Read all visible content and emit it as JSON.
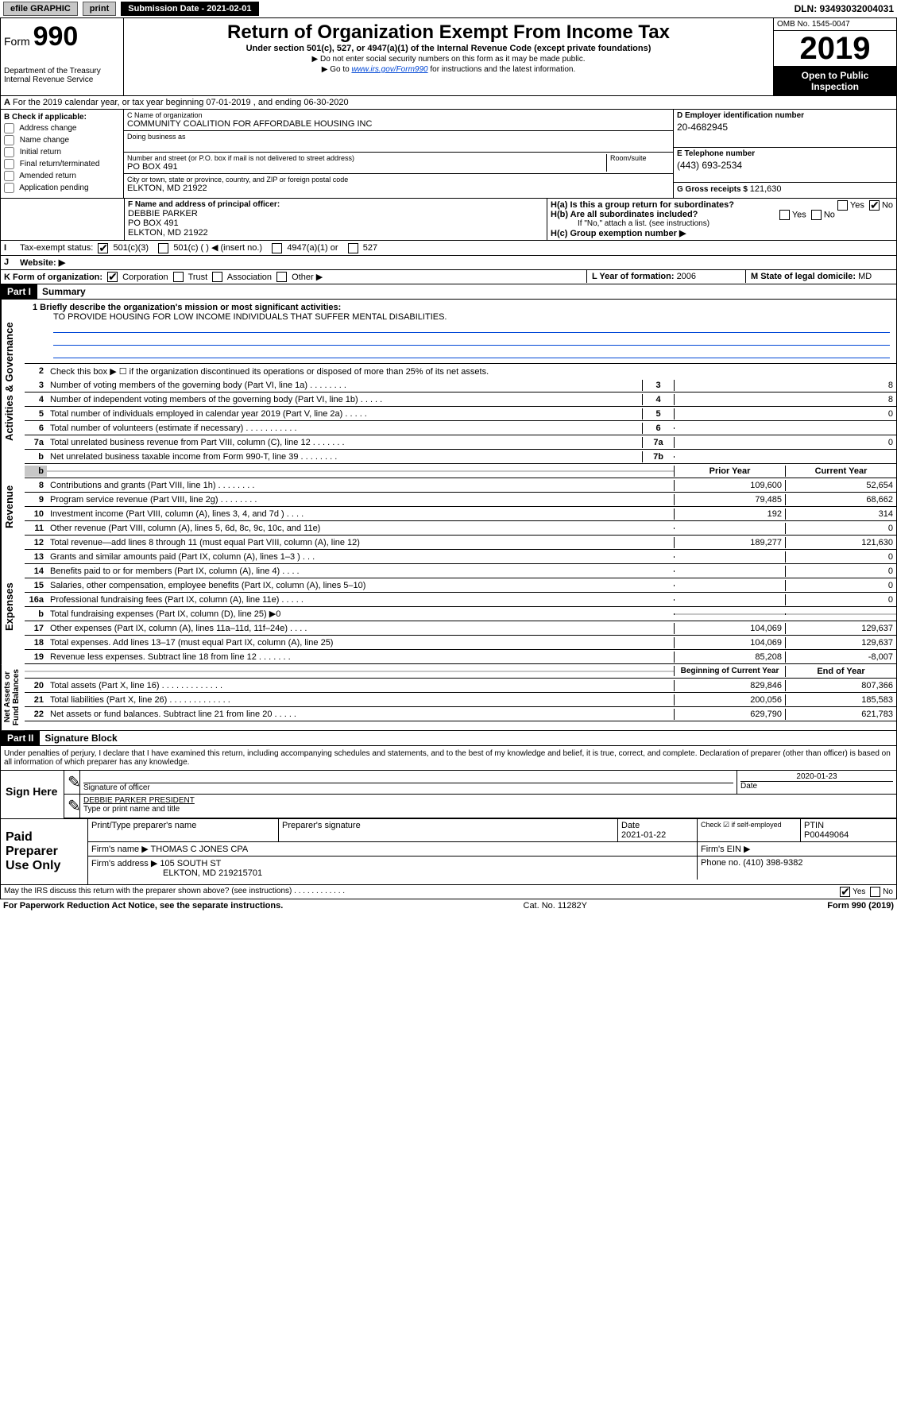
{
  "topbar": {
    "efile": "efile GRAPHIC",
    "print": "print",
    "submission": "Submission Date - 2021-02-01",
    "dln": "DLN: 93493032004031"
  },
  "header": {
    "form_label": "Form",
    "form_num": "990",
    "title": "Return of Organization Exempt From Income Tax",
    "subtitle": "Under section 501(c), 527, or 4947(a)(1) of the Internal Revenue Code (except private foundations)",
    "note1": "Do not enter social security numbers on this form as it may be made public.",
    "note2_pre": "Go to ",
    "note2_link": "www.irs.gov/Form990",
    "note2_post": " for instructions and the latest information.",
    "dept": "Department of the Treasury\nInternal Revenue Service",
    "omb": "OMB No. 1545-0047",
    "year": "2019",
    "open": "Open to Public Inspection"
  },
  "section_a": "For the 2019 calendar year, or tax year beginning 07-01-2019  , and ending 06-30-2020",
  "check_b": {
    "hdr": "B Check if applicable:",
    "opts": [
      "Address change",
      "Name change",
      "Initial return",
      "Final return/terminated",
      "Amended return",
      "Application pending"
    ]
  },
  "org": {
    "name_lbl": "C Name of organization",
    "name": "COMMUNITY COALITION FOR AFFORDABLE HOUSING INC",
    "dba_lbl": "Doing business as",
    "addr_lbl": "Number and street (or P.O. box if mail is not delivered to street address)",
    "room_lbl": "Room/suite",
    "addr": "PO BOX 491",
    "city_lbl": "City or town, state or province, country, and ZIP or foreign postal code",
    "city": "ELKTON, MD  21922"
  },
  "right_info": {
    "ein_lbl": "D Employer identification number",
    "ein": "20-4682945",
    "phone_lbl": "E Telephone number",
    "phone": "(443) 693-2534",
    "gross_lbl": "G Gross receipts $ ",
    "gross": "121,630"
  },
  "officer": {
    "lbl": "F  Name and address of principal officer:",
    "name": "DEBBIE PARKER",
    "addr1": "PO BOX 491",
    "addr2": "ELKTON, MD   21922"
  },
  "h_section": {
    "a": "H(a)  Is this a group return for subordinates?",
    "b": "H(b)  Are all subordinates included?",
    "note": "If \"No,\" attach a list. (see instructions)",
    "c": "H(c)  Group exemption number ▶"
  },
  "tax_status": {
    "lbl": "Tax-exempt status:",
    "opts": [
      "501(c)(3)",
      "501(c) (  ) ◀ (insert no.)",
      "4947(a)(1) or",
      "527"
    ]
  },
  "website_lbl": "Website: ▶",
  "k_form": {
    "lbl": "K Form of organization:",
    "opts": [
      "Corporation",
      "Trust",
      "Association",
      "Other ▶"
    ]
  },
  "l_year": {
    "lbl": "L Year of formation: ",
    "val": "2006"
  },
  "m_state": {
    "lbl": "M State of legal domicile: ",
    "val": "MD"
  },
  "part1": {
    "tag": "Part I",
    "title": "Summary"
  },
  "mission": {
    "q": "1  Briefly describe the organization's mission or most significant activities:",
    "a": "TO PROVIDE HOUSING FOR LOW INCOME INDIVIDUALS THAT SUFFER MENTAL DISABILITIES."
  },
  "summary_lines": [
    {
      "n": "2",
      "t": "Check this box ▶ ☐  if the organization discontinued its operations or disposed of more than 25% of its net assets.",
      "nb": "",
      "v": ""
    },
    {
      "n": "3",
      "t": "Number of voting members of the governing body (Part VI, line 1a)  .  .  .  .  .  .  .  .",
      "nb": "3",
      "v": "8"
    },
    {
      "n": "4",
      "t": "Number of independent voting members of the governing body (Part VI, line 1b)  .  .  .  .  .",
      "nb": "4",
      "v": "8"
    },
    {
      "n": "5",
      "t": "Total number of individuals employed in calendar year 2019 (Part V, line 2a)  .  .  .  .  .",
      "nb": "5",
      "v": "0"
    },
    {
      "n": "6",
      "t": "Total number of volunteers (estimate if necessary)  .  .  .  .  .  .  .  .  .  .  .",
      "nb": "6",
      "v": ""
    },
    {
      "n": "7a",
      "t": "Total unrelated business revenue from Part VIII, column (C), line 12  .  .  .  .  .  .  .",
      "nb": "7a",
      "v": "0"
    },
    {
      "n": "b",
      "t": "Net unrelated business taxable income from Form 990-T, line 39  .  .  .  .  .  .  .  .",
      "nb": "7b",
      "v": ""
    }
  ],
  "rev_hdr": {
    "pv": "Prior Year",
    "cv": "Current Year"
  },
  "revenue": [
    {
      "n": "8",
      "t": "Contributions and grants (Part VIII, line 1h)  .  .  .  .  .  .  .  .",
      "pv": "109,600",
      "cv": "52,654"
    },
    {
      "n": "9",
      "t": "Program service revenue (Part VIII, line 2g)  .  .  .  .  .  .  .  .",
      "pv": "79,485",
      "cv": "68,662"
    },
    {
      "n": "10",
      "t": "Investment income (Part VIII, column (A), lines 3, 4, and 7d )  .  .  .  .",
      "pv": "192",
      "cv": "314"
    },
    {
      "n": "11",
      "t": "Other revenue (Part VIII, column (A), lines 5, 6d, 8c, 9c, 10c, and 11e)",
      "pv": "",
      "cv": "0"
    },
    {
      "n": "12",
      "t": "Total revenue—add lines 8 through 11 (must equal Part VIII, column (A), line 12)",
      "pv": "189,277",
      "cv": "121,630"
    }
  ],
  "expenses": [
    {
      "n": "13",
      "t": "Grants and similar amounts paid (Part IX, column (A), lines 1–3 )  .  .  .",
      "pv": "",
      "cv": "0"
    },
    {
      "n": "14",
      "t": "Benefits paid to or for members (Part IX, column (A), line 4)  .  .  .  .",
      "pv": "",
      "cv": "0"
    },
    {
      "n": "15",
      "t": "Salaries, other compensation, employee benefits (Part IX, column (A), lines 5–10)",
      "pv": "",
      "cv": "0"
    },
    {
      "n": "16a",
      "t": "Professional fundraising fees (Part IX, column (A), line 11e)  .  .  .  .  .",
      "pv": "",
      "cv": "0"
    },
    {
      "n": "b",
      "t": "Total fundraising expenses (Part IX, column (D), line 25) ▶0",
      "pv": "GRAY",
      "cv": "GRAY"
    },
    {
      "n": "17",
      "t": "Other expenses (Part IX, column (A), lines 11a–11d, 11f–24e)  .  .  .  .",
      "pv": "104,069",
      "cv": "129,637"
    },
    {
      "n": "18",
      "t": "Total expenses. Add lines 13–17 (must equal Part IX, column (A), line 25)",
      "pv": "104,069",
      "cv": "129,637"
    },
    {
      "n": "19",
      "t": "Revenue less expenses. Subtract line 18 from line 12  .  .  .  .  .  .  .",
      "pv": "85,208",
      "cv": "-8,007"
    }
  ],
  "na_hdr": {
    "pv": "Beginning of Current Year",
    "cv": "End of Year"
  },
  "netassets": [
    {
      "n": "20",
      "t": "Total assets (Part X, line 16)  .  .  .  .  .  .  .  .  .  .  .  .  .",
      "pv": "829,846",
      "cv": "807,366"
    },
    {
      "n": "21",
      "t": "Total liabilities (Part X, line 26)  .  .  .  .  .  .  .  .  .  .  .  .  .",
      "pv": "200,056",
      "cv": "185,583"
    },
    {
      "n": "22",
      "t": "Net assets or fund balances. Subtract line 21 from line 20  .  .  .  .  .",
      "pv": "629,790",
      "cv": "621,783"
    }
  ],
  "vtabs": {
    "gov": "Activities & Governance",
    "rev": "Revenue",
    "exp": "Expenses",
    "na": "Net Assets or\nFund Balances"
  },
  "part2": {
    "tag": "Part II",
    "title": "Signature Block"
  },
  "perjury": "Under penalties of perjury, I declare that I have examined this return, including accompanying schedules and statements, and to the best of my knowledge and belief, it is true, correct, and complete. Declaration of preparer (other than officer) is based on all information of which preparer has any knowledge.",
  "sign": {
    "here": "Sign Here",
    "sig_officer": "Signature of officer",
    "date": "2020-01-23",
    "date_lbl": "Date",
    "name": "DEBBIE PARKER  PRESIDENT",
    "name_lbl": "Type or print name and title"
  },
  "paid": {
    "hdr": "Paid Preparer Use Only",
    "prep_name_lbl": "Print/Type preparer's name",
    "prep_sig_lbl": "Preparer's signature",
    "date_lbl": "Date",
    "date": "2021-01-22",
    "check_lbl": "Check ☑ if self-employed",
    "ptin_lbl": "PTIN",
    "ptin": "P00449064",
    "firm_name_lbl": "Firm's name   ▶",
    "firm_name": "THOMAS C JONES CPA",
    "firm_ein_lbl": "Firm's EIN ▶",
    "firm_addr_lbl": "Firm's address ▶",
    "firm_addr": "105 SOUTH ST",
    "firm_city": "ELKTON, MD   219215701",
    "phone_lbl": "Phone no. ",
    "phone": "(410) 398-9382"
  },
  "discuss": "May the IRS discuss this return with the preparer shown above? (see instructions)  .  .  .  .  .  .  .  .  .  .  .  .",
  "bottom": {
    "pra": "For Paperwork Reduction Act Notice, see the separate instructions.",
    "cat": "Cat. No. 11282Y",
    "form": "Form 990 (2019)"
  },
  "colors": {
    "link": "#0047d6",
    "gray": "#c7c7c7",
    "black": "#000000"
  }
}
